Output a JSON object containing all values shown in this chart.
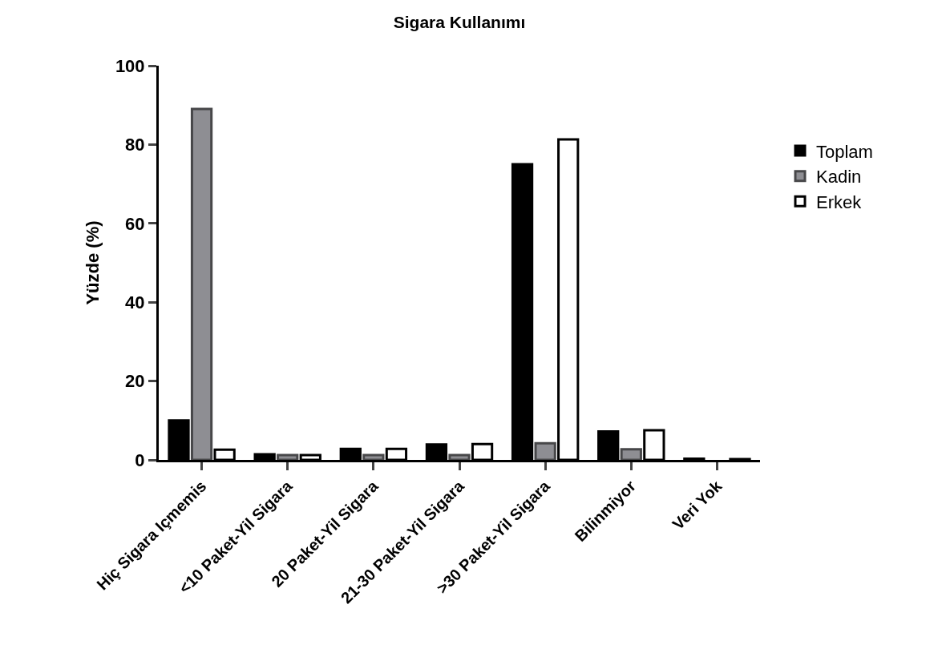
{
  "chart_data": {
    "type": "bar",
    "title": "Sigara Kullanımı",
    "ylabel": "Yüzde (%)",
    "categories": [
      "Hiç Sigara Içmemis",
      "<10 Paket-Yil Sigara",
      "20 Paket-Yil Sigara",
      "21-30 Paket-Yil Sigara",
      ">30 Paket-Yil Sigara",
      "Bilinmiyor",
      "Veri Yok"
    ],
    "series": [
      {
        "name": "Toplam",
        "color": "#000000",
        "values": [
          10,
          1.4,
          2.8,
          3.9,
          75,
          7.2,
          0.3
        ]
      },
      {
        "name": "Kadin",
        "color": "#8e8e93",
        "values": [
          89,
          1.2,
          1.2,
          1.2,
          4.2,
          2.7,
          null
        ]
      },
      {
        "name": "Erkek",
        "color": "#ffffff",
        "values": [
          2.6,
          1.2,
          2.8,
          4,
          81.3,
          7.5,
          0.2
        ]
      }
    ],
    "ylim": [
      0,
      100
    ],
    "yticks": [
      0,
      20,
      40,
      60,
      80,
      100
    ],
    "legend": "right"
  }
}
